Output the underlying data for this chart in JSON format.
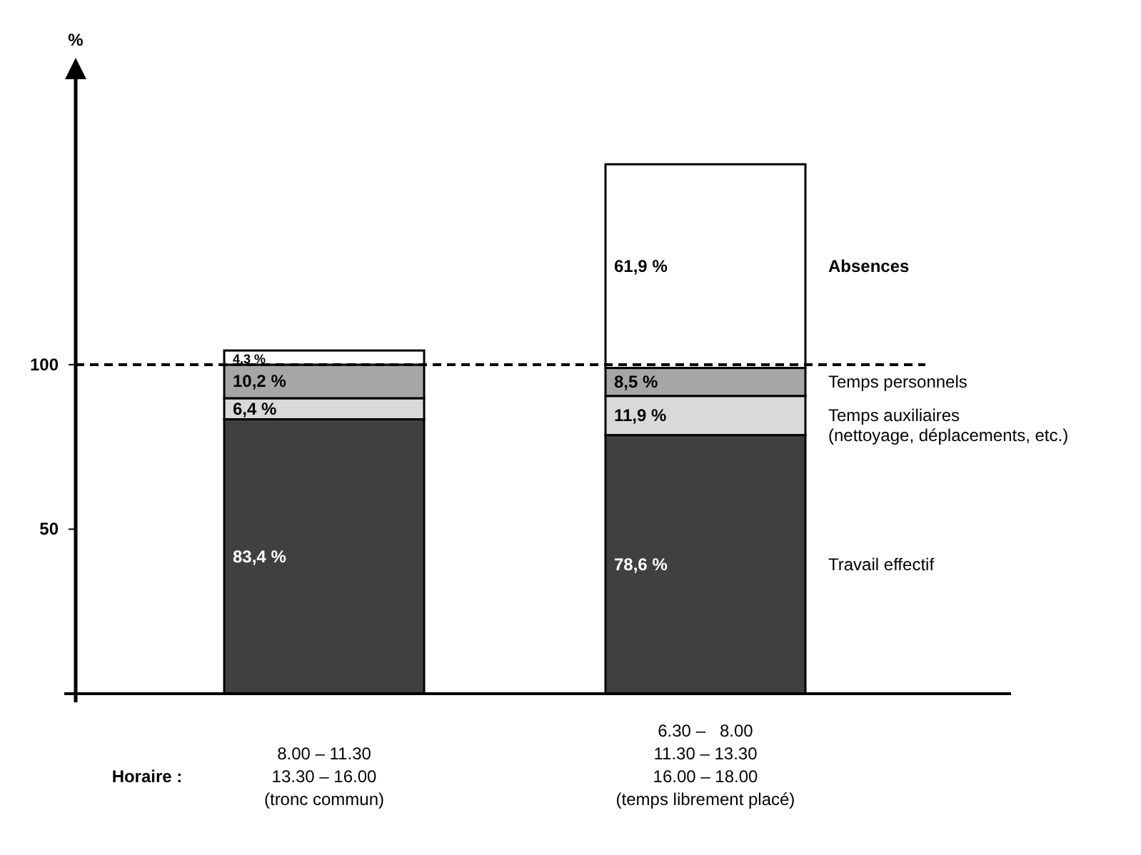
{
  "chart_data": {
    "type": "bar",
    "stacked": true,
    "ylabel": "%",
    "xlabel": "Horaire :",
    "categories": [
      "8.00 – 11.30\n13.30 – 16.00\n(tronc commun)",
      "6.30 –   8.00\n11.30 – 13.30\n16.00 – 18.00\n(temps librement placé)"
    ],
    "series": [
      {
        "name": "Travail effectif",
        "color": "#404040",
        "values": [
          83.4,
          78.6
        ],
        "value_labels": [
          "83,4 %",
          "78,6 %"
        ]
      },
      {
        "name": "Temps auxiliaires\n(nettoyage, déplacements, etc.)",
        "color": "#d9d9d9",
        "values": [
          6.4,
          11.9
        ],
        "value_labels": [
          "6,4 %",
          "11,9 %"
        ]
      },
      {
        "name": "Temps personnels",
        "color": "#a6a6a6",
        "values": [
          10.2,
          8.5
        ],
        "value_labels": [
          "10,2 %",
          "8,5 %"
        ]
      },
      {
        "name": "Absences",
        "color": "#ffffff",
        "values": [
          4.3,
          61.9
        ],
        "value_labels": [
          "4,3 %",
          "61,9 %"
        ]
      }
    ],
    "ylim": [
      0,
      190
    ],
    "yticks": [
      50,
      100
    ],
    "ref_lines": [
      {
        "axis": "y",
        "value": 100,
        "line_style": "dashed"
      }
    ],
    "grid": false,
    "legend": false
  }
}
